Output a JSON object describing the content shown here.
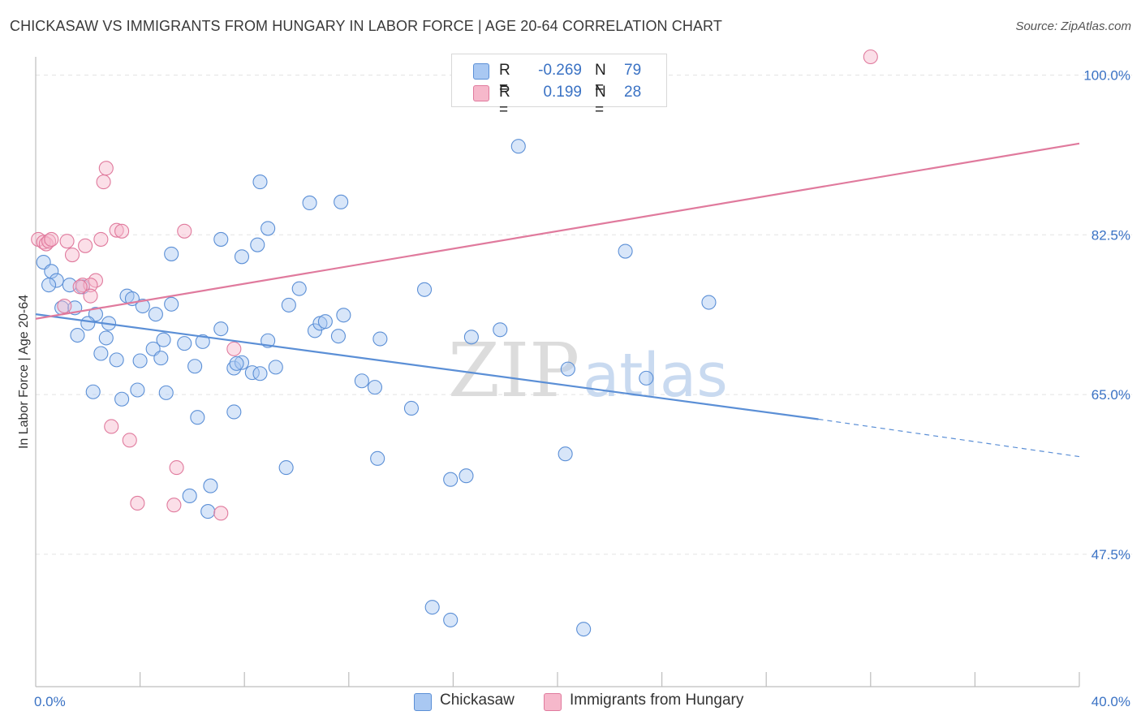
{
  "header": {
    "title": "CHICKASAW VS IMMIGRANTS FROM HUNGARY IN LABOR FORCE | AGE 20-64 CORRELATION CHART",
    "source": "Source: ZipAtlas.com"
  },
  "watermark": {
    "zip": "ZIP",
    "atlas": "atlas"
  },
  "legend_top": {
    "rows": [
      {
        "r_label": "R =",
        "r_value": "-0.269",
        "n_label": "N =",
        "n_value": "79",
        "color": "#a9c8f2",
        "stroke": "#5b8fd6"
      },
      {
        "r_label": "R =",
        "r_value": "0.199",
        "n_label": "N =",
        "n_value": "28",
        "color": "#f6b8cb",
        "stroke": "#e07a9d"
      }
    ]
  },
  "legend_bottom": {
    "items": [
      {
        "label": "Chickasaw",
        "color": "#a9c8f2",
        "stroke": "#5b8fd6"
      },
      {
        "label": "Immigrants from Hungary",
        "color": "#f6b8cb",
        "stroke": "#e07a9d"
      }
    ]
  },
  "chart_data": {
    "type": "scatter",
    "title": "CHICKASAW VS IMMIGRANTS FROM HUNGARY IN LABOR FORCE | AGE 20-64 CORRELATION CHART",
    "xlabel": "",
    "ylabel": "In Labor Force | Age 20-64",
    "xlim": [
      0,
      40
    ],
    "ylim": [
      33,
      102
    ],
    "x_tick_labels": [
      {
        "value": 0,
        "label": "0.0%"
      },
      {
        "value": 40,
        "label": "40.0%"
      }
    ],
    "x_minor_ticks": [
      4,
      8,
      12,
      16,
      20,
      24,
      28,
      32,
      36,
      40
    ],
    "y_ticks": [
      {
        "value": 100.0,
        "label": "100.0%"
      },
      {
        "value": 82.5,
        "label": "82.5%"
      },
      {
        "value": 65.0,
        "label": "65.0%"
      },
      {
        "value": 47.5,
        "label": "47.5%"
      }
    ],
    "grid": true,
    "legend": "top-center",
    "series": [
      {
        "name": "Chickasaw",
        "color": "#5b8fd6",
        "fill": "#a9c8f2",
        "trend": {
          "x0": 0.0,
          "y0": 73.8,
          "x1": 30.0,
          "y1": 62.3,
          "x_dash_end": 40.0,
          "y_dash_end": 58.2
        },
        "points": [
          [
            0.3,
            79.5
          ],
          [
            0.6,
            78.5
          ],
          [
            0.8,
            77.5
          ],
          [
            1.3,
            77.0
          ],
          [
            1.8,
            76.8
          ],
          [
            0.5,
            77.0
          ],
          [
            1.0,
            74.5
          ],
          [
            1.5,
            74.5
          ],
          [
            2.3,
            73.8
          ],
          [
            2.0,
            72.8
          ],
          [
            2.8,
            72.8
          ],
          [
            1.6,
            71.5
          ],
          [
            2.7,
            71.2
          ],
          [
            3.5,
            75.8
          ],
          [
            3.7,
            75.5
          ],
          [
            4.1,
            74.7
          ],
          [
            4.6,
            73.8
          ],
          [
            5.2,
            74.9
          ],
          [
            4.5,
            70.0
          ],
          [
            4.9,
            71.0
          ],
          [
            5.7,
            70.6
          ],
          [
            6.4,
            70.8
          ],
          [
            2.5,
            69.5
          ],
          [
            3.1,
            68.8
          ],
          [
            4.0,
            68.7
          ],
          [
            6.1,
            68.1
          ],
          [
            7.1,
            72.2
          ],
          [
            7.6,
            67.9
          ],
          [
            7.9,
            68.5
          ],
          [
            8.3,
            67.4
          ],
          [
            8.6,
            67.3
          ],
          [
            8.9,
            70.9
          ],
          [
            9.2,
            68.0
          ],
          [
            9.7,
            74.8
          ],
          [
            10.1,
            76.6
          ],
          [
            10.7,
            72.0
          ],
          [
            10.9,
            72.8
          ],
          [
            11.1,
            73.0
          ],
          [
            11.6,
            71.4
          ],
          [
            11.8,
            73.7
          ],
          [
            12.5,
            66.5
          ],
          [
            13.2,
            71.1
          ],
          [
            13.0,
            65.8
          ],
          [
            14.4,
            63.5
          ],
          [
            14.9,
            76.5
          ],
          [
            16.7,
            71.3
          ],
          [
            17.8,
            72.1
          ],
          [
            20.4,
            67.8
          ],
          [
            23.4,
            66.8
          ],
          [
            2.2,
            65.3
          ],
          [
            3.3,
            64.5
          ],
          [
            3.9,
            65.5
          ],
          [
            5.0,
            65.2
          ],
          [
            6.2,
            62.5
          ],
          [
            7.6,
            63.1
          ],
          [
            9.6,
            57.0
          ],
          [
            13.1,
            58.0
          ],
          [
            15.9,
            55.7
          ],
          [
            16.5,
            56.1
          ],
          [
            20.3,
            58.5
          ],
          [
            6.7,
            55.0
          ],
          [
            5.9,
            53.9
          ],
          [
            6.6,
            52.2
          ],
          [
            5.2,
            80.4
          ],
          [
            7.1,
            82.0
          ],
          [
            7.9,
            80.1
          ],
          [
            8.5,
            81.4
          ],
          [
            8.9,
            83.2
          ],
          [
            10.5,
            86.0
          ],
          [
            11.7,
            86.1
          ],
          [
            8.6,
            88.3
          ],
          [
            18.5,
            92.2
          ],
          [
            22.6,
            80.7
          ],
          [
            25.8,
            75.1
          ],
          [
            15.2,
            41.7
          ],
          [
            15.9,
            40.3
          ],
          [
            21.0,
            39.3
          ],
          [
            4.8,
            69.0
          ],
          [
            7.7,
            68.4
          ]
        ]
      },
      {
        "name": "Immigrants from Hungary",
        "color": "#e07a9d",
        "fill": "#f6b8cb",
        "trend": {
          "x0": 0.0,
          "y0": 73.3,
          "x1": 40.0,
          "y1": 92.5
        },
        "points": [
          [
            0.1,
            82.0
          ],
          [
            0.3,
            81.7
          ],
          [
            0.4,
            81.5
          ],
          [
            0.5,
            81.8
          ],
          [
            0.6,
            82.0
          ],
          [
            1.2,
            81.8
          ],
          [
            1.9,
            81.3
          ],
          [
            2.5,
            82.0
          ],
          [
            3.1,
            83.0
          ],
          [
            3.3,
            82.9
          ],
          [
            5.7,
            82.9
          ],
          [
            2.3,
            77.5
          ],
          [
            1.8,
            77.0
          ],
          [
            2.1,
            77.0
          ],
          [
            1.4,
            80.3
          ],
          [
            1.7,
            76.8
          ],
          [
            2.1,
            75.8
          ],
          [
            1.1,
            74.7
          ],
          [
            2.6,
            88.3
          ],
          [
            2.7,
            89.8
          ],
          [
            2.9,
            61.5
          ],
          [
            3.6,
            60.0
          ],
          [
            5.4,
            57.0
          ],
          [
            5.3,
            52.9
          ],
          [
            3.9,
            53.1
          ],
          [
            7.1,
            52.0
          ],
          [
            7.6,
            70.0
          ],
          [
            32.0,
            102.0
          ]
        ]
      }
    ]
  }
}
